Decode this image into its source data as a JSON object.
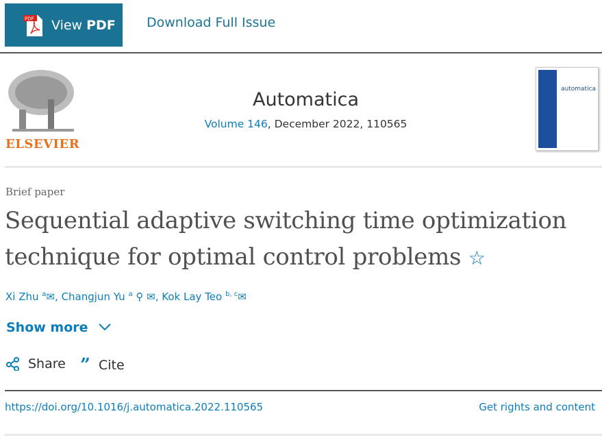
{
  "toolbar": {
    "view_pdf_prefix": "View",
    "view_pdf_strong": "PDF",
    "download_issue": "Download Full Issue"
  },
  "publisher": {
    "logo_text": "ELSEVIER"
  },
  "journal": {
    "name": "Automatica",
    "volume": "Volume 146",
    "issue_rest": ", December 2022, 110565",
    "cover_title": "automatica"
  },
  "article": {
    "type": "Brief paper",
    "title_line1": "Sequential adaptive switching time optimization",
    "title_line2": "technique for optimal control problems",
    "authors": [
      {
        "name": "Xi Zhu",
        "sup": "a"
      },
      {
        "name": "Changjun Yu",
        "sup": "a"
      },
      {
        "name": "Kok Lay Teo",
        "sup": "b, c"
      }
    ]
  },
  "actions": {
    "show_more": "Show more",
    "share": "Share",
    "cite": "Cite"
  },
  "footer": {
    "doi": "https://doi.org/10.1016/j.automatica.2022.110565",
    "rights": "Get rights and content"
  },
  "colors": {
    "brand": "#1a7394",
    "link": "#0c7dbb",
    "elsevier": "#e9711c"
  }
}
